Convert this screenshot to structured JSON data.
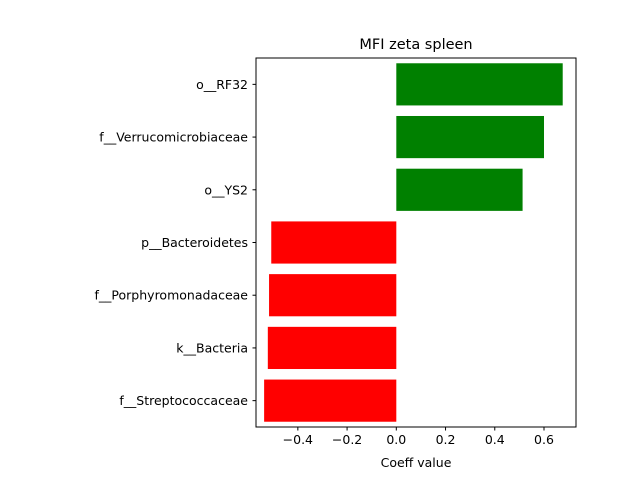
{
  "chart_data": {
    "type": "bar",
    "orientation": "horizontal",
    "title": "MFI zeta spleen",
    "xlabel": "Coeff value",
    "ylabel": "",
    "xlim": [
      -0.57,
      0.73
    ],
    "xticks": [
      -0.4,
      -0.2,
      0.0,
      0.2,
      0.4,
      0.6
    ],
    "xtick_labels": [
      "−0.4",
      "−0.2",
      "0.0",
      "0.2",
      "0.4",
      "0.6"
    ],
    "categories": [
      "o__RF32",
      "f__Verrucomicrobiaceae",
      "o__YS2",
      "p__Bacteroidetes",
      "f__Porphyromonadaceae",
      "k__Bacteria",
      "f__Streptococcaceae"
    ],
    "values": [
      0.676,
      0.6,
      0.513,
      -0.508,
      -0.517,
      -0.522,
      -0.537
    ],
    "colors": {
      "positive": "#008000",
      "negative": "#ff0000"
    },
    "grid": false,
    "legend": "none"
  }
}
